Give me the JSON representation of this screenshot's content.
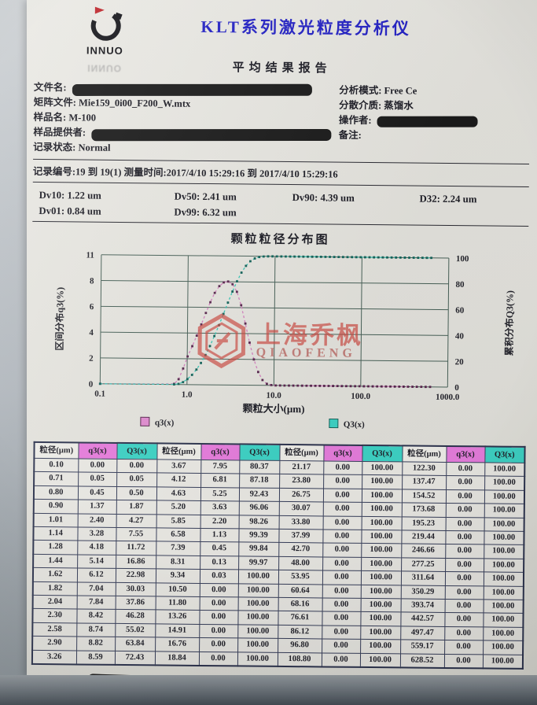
{
  "header": {
    "logo_text": "INNUO",
    "title": "KLT系列激光粒度分析仪",
    "subtitle": "平均结果报告"
  },
  "info": {
    "left": [
      {
        "label": "文件名:",
        "value": "",
        "redact": "lg"
      },
      {
        "label": "矩阵文件:",
        "value": "Mie159_0i00_F200_W.mtx"
      },
      {
        "label": "样品名:",
        "value": "M-100"
      },
      {
        "label": "样品提供者:",
        "value": "",
        "redact": "lg"
      },
      {
        "label": "记录状态:",
        "value": "Normal"
      }
    ],
    "right": [
      {
        "label": "分析模式:",
        "value": "Free Ce"
      },
      {
        "label": "分散介质:",
        "value": "蒸馏水"
      },
      {
        "label": "操作者:",
        "value": "",
        "redact": "md"
      },
      {
        "label": "备注:",
        "value": ""
      }
    ]
  },
  "record_line": "记录编号:19 到 19(1) 测量时间:2017/4/10 15:29:16 到 2017/4/10 15:29:16",
  "dv_stats": {
    "row1": [
      {
        "label": "Dv10:",
        "value": "1.22 um"
      },
      {
        "label": "Dv50:",
        "value": "2.41 um"
      },
      {
        "label": "Dv90:",
        "value": "4.39 um"
      },
      {
        "label": "D32:",
        "value": "2.24 um"
      }
    ],
    "row2": [
      {
        "label": "Dv01:",
        "value": "0.84 um"
      },
      {
        "label": "Dv99:",
        "value": "6.32 um"
      }
    ]
  },
  "watermark": {
    "line1": "上海乔枫",
    "line2": "QIAOFENG",
    "color": "#cf4a42"
  },
  "chart_data": {
    "type": "line",
    "title": "颗粒粒径分布图",
    "xlabel": "颗粒大小(μm)",
    "ylabel_left": "区间分布q3(%)",
    "ylabel_right": "累积分布Q3(%)",
    "x_scale": "log",
    "xlim": [
      0.1,
      1000
    ],
    "y_left_max": 11,
    "y_right_max": 100,
    "y_left_ticks": [
      "11",
      "8",
      "6",
      "4",
      "2",
      "0"
    ],
    "y_right_ticks": [
      "100",
      "80",
      "60",
      "40",
      "20",
      "0"
    ],
    "x_ticks": [
      "0.1",
      "1.0",
      "10.0",
      "100.0",
      "1000.0"
    ],
    "grid": true,
    "legend": [
      "q3(x)",
      "Q3(x)"
    ],
    "legend_colors": [
      "#e48fd4",
      "#3fd6c8"
    ],
    "x_sizes": [
      0.1,
      0.71,
      0.8,
      0.9,
      1.01,
      1.14,
      1.28,
      1.44,
      1.62,
      1.82,
      2.04,
      2.3,
      2.58,
      2.9,
      3.26,
      3.67,
      4.12,
      4.63,
      5.2,
      5.85,
      6.58,
      7.39,
      8.31,
      9.34,
      10.5,
      11.8,
      13.26,
      14.91,
      16.76,
      18.84,
      21.17,
      23.8,
      26.75,
      30.07,
      33.8,
      37.99,
      42.7,
      48.0,
      53.95,
      60.64,
      68.16,
      76.61,
      86.12,
      96.8,
      108.8,
      122.3,
      137.47,
      154.52,
      173.68,
      195.23,
      219.44,
      246.66,
      277.25,
      311.64,
      350.29,
      393.74,
      442.57,
      497.47,
      559.17,
      628.52
    ],
    "series": [
      {
        "name": "q3(x)",
        "axis": "left",
        "color": "#d783c2",
        "marker": "#5a2a50",
        "values": [
          0.0,
          0.05,
          0.45,
          1.37,
          2.4,
          3.28,
          4.18,
          5.14,
          6.12,
          7.04,
          7.84,
          8.42,
          8.74,
          8.82,
          8.59,
          7.95,
          6.81,
          5.25,
          3.63,
          2.2,
          1.13,
          0.45,
          0.13,
          0.03,
          0.0,
          0.0,
          0.0,
          0.0,
          0.0,
          0.0,
          0.0,
          0.0,
          0.0,
          0.0,
          0.0,
          0.0,
          0.0,
          0.0,
          0.0,
          0.0,
          0.0,
          0.0,
          0.0,
          0.0,
          0.0,
          0.0,
          0.0,
          0.0,
          0.0,
          0.0,
          0.0,
          0.0,
          0.0,
          0.0,
          0.0,
          0.0,
          0.0,
          0.0,
          0.0,
          0.0
        ]
      },
      {
        "name": "Q3(x)",
        "axis": "right",
        "color": "#38c9b8",
        "marker": "#17655c",
        "values": [
          0.0,
          0.05,
          0.5,
          1.87,
          4.27,
          7.55,
          11.72,
          16.86,
          22.98,
          30.03,
          37.86,
          46.28,
          55.02,
          63.84,
          72.43,
          80.37,
          87.18,
          92.43,
          96.06,
          98.26,
          99.39,
          99.84,
          99.97,
          100.0,
          100.0,
          100.0,
          100.0,
          100.0,
          100.0,
          100.0,
          100.0,
          100.0,
          100.0,
          100.0,
          100.0,
          100.0,
          100.0,
          100.0,
          100.0,
          100.0,
          100.0,
          100.0,
          100.0,
          100.0,
          100.0,
          100.0,
          100.0,
          100.0,
          100.0,
          100.0,
          100.0,
          100.0,
          100.0,
          100.0,
          100.0,
          100.0,
          100.0,
          100.0,
          100.0,
          100.0
        ]
      }
    ]
  },
  "table": {
    "headers": [
      "粒径(μm)",
      "q3(x)",
      "Q3(x)"
    ],
    "header_bg": {
      "size": "#f2f1ec",
      "q3": "#ea7fe0",
      "Q3": "#3fd6c8"
    },
    "column_groups": 4,
    "rows_per_group": 15
  }
}
